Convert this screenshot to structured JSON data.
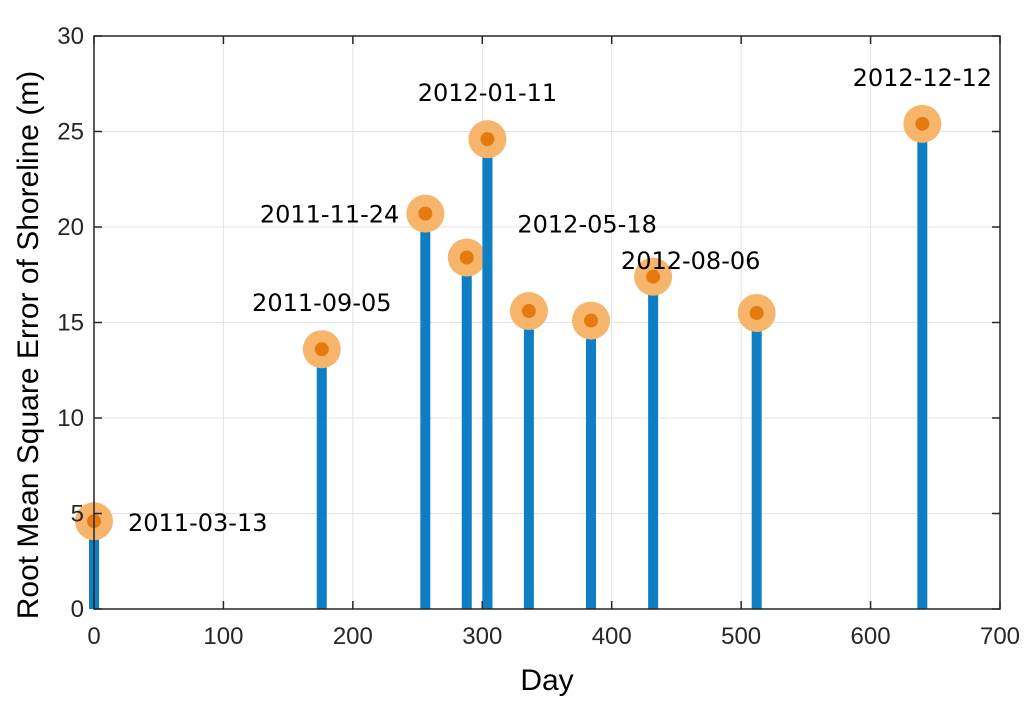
{
  "chart_data": {
    "type": "stem",
    "xlabel": "Day",
    "ylabel": "Root Mean Square Error of Shoreline (m)",
    "xlim": [
      0,
      700
    ],
    "ylim": [
      0,
      30
    ],
    "xticks": [
      0,
      100,
      200,
      300,
      400,
      500,
      600,
      700
    ],
    "yticks": [
      0,
      5,
      10,
      15,
      20,
      25,
      30
    ],
    "grid": true,
    "colors": {
      "stem": "#0e7fc4",
      "marker_halo": "#f7b56b",
      "marker_core": "#e57a10",
      "grid": "#e3e3e3",
      "axes": "#262626"
    },
    "points": [
      {
        "x": 0,
        "y": 4.6,
        "label": "2011-03-13",
        "label_pos": "right"
      },
      {
        "x": 176,
        "y": 13.6,
        "label": "2011-09-05",
        "label_pos": "above"
      },
      {
        "x": 256,
        "y": 20.7,
        "label": "2011-11-24",
        "label_pos": "left"
      },
      {
        "x": 288,
        "y": 18.4,
        "label": ""
      },
      {
        "x": 304,
        "y": 24.6,
        "label": "2012-01-11",
        "label_pos": "above"
      },
      {
        "x": 336,
        "y": 15.6,
        "label": ""
      },
      {
        "x": 384,
        "y": 15.1,
        "label": ""
      },
      {
        "x": 432,
        "y": 17.4,
        "label": "2012-05-18",
        "label_pos": "above-left"
      },
      {
        "x": 512,
        "y": 15.5,
        "label": "2012-08-06",
        "label_pos": "above-left"
      },
      {
        "x": 640,
        "y": 25.4,
        "label": "2012-12-12",
        "label_pos": "above"
      }
    ]
  }
}
